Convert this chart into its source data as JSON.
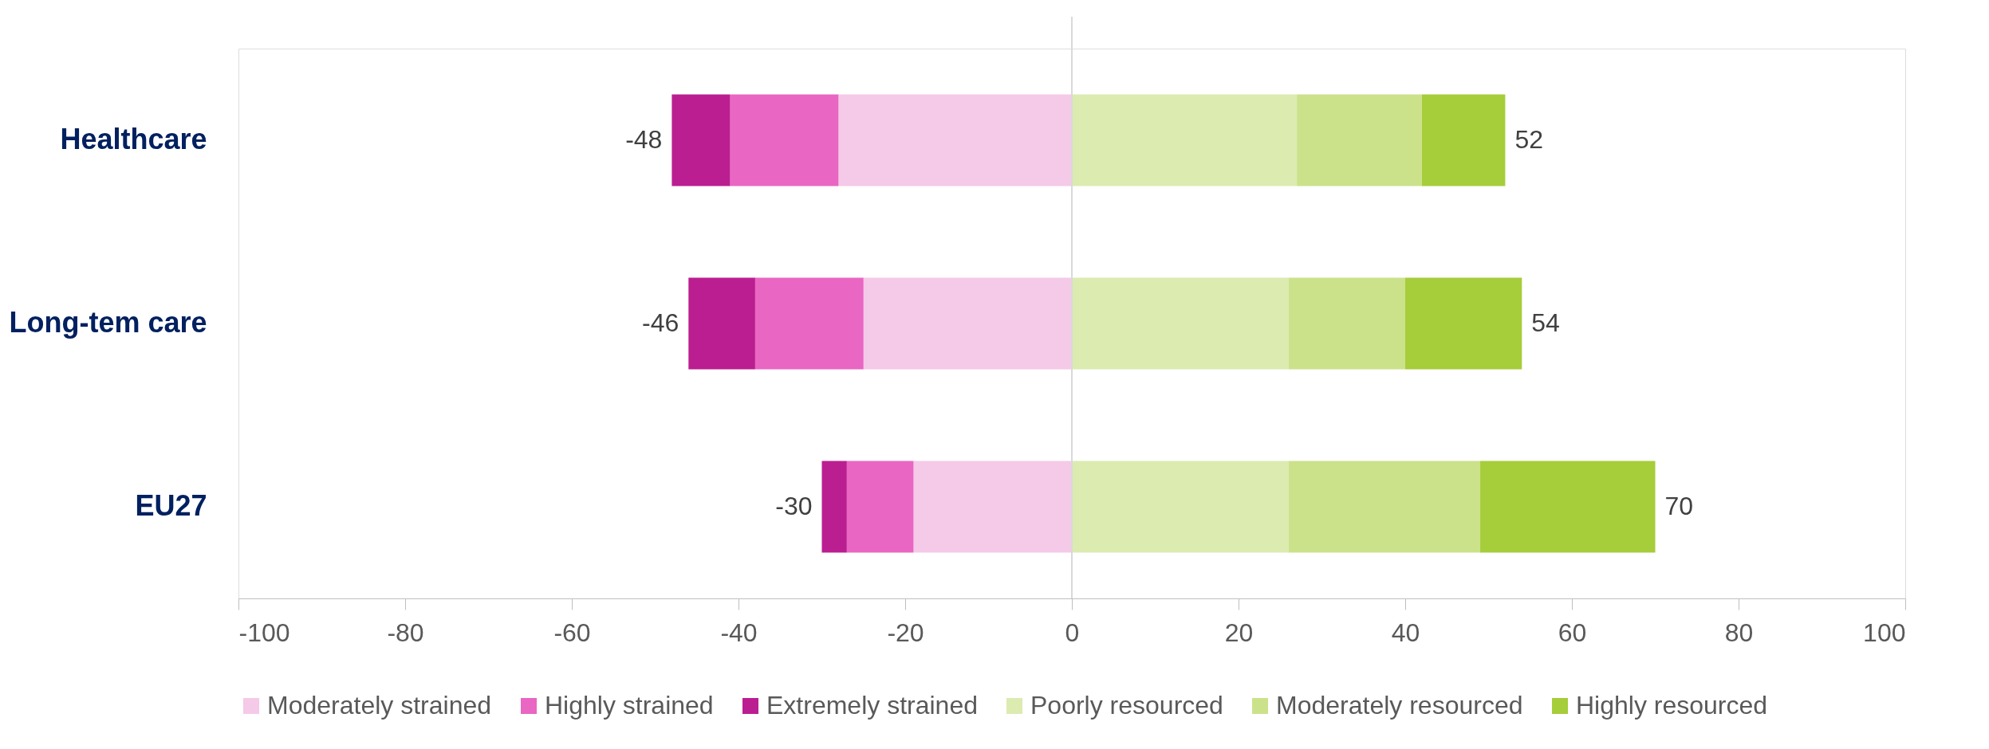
{
  "chart_data": {
    "type": "bar",
    "orientation": "horizontal",
    "stacked": true,
    "categories": [
      "Healthcare",
      "Long-tem care",
      "EU27"
    ],
    "series": [
      {
        "name": "Moderately strained",
        "color": "#f5c9e8",
        "values": [
          -28,
          -25,
          -19
        ]
      },
      {
        "name": "Highly strained",
        "color": "#e966c3",
        "values": [
          -13,
          -13,
          -8
        ]
      },
      {
        "name": "Extremely strained",
        "color": "#bb1e90",
        "values": [
          -7,
          -8,
          -3
        ]
      },
      {
        "name": "Poorly resourced",
        "color": "#dcebb0",
        "values": [
          27,
          26,
          26
        ]
      },
      {
        "name": "Moderately resourced",
        "color": "#cbe28b",
        "values": [
          15,
          14,
          23
        ]
      },
      {
        "name": "Highly resourced",
        "color": "#a6cd3a",
        "values": [
          10,
          14,
          21
        ]
      }
    ],
    "xlim": [
      -100,
      100
    ],
    "xticks": [
      -100,
      -80,
      -60,
      -40,
      -20,
      0,
      20,
      40,
      60,
      80,
      100
    ],
    "ref_lines": [
      {
        "axis": "x",
        "value": 0,
        "color": "#d9d9d9"
      }
    ],
    "annotations": [
      {
        "text": "-48",
        "x": -48,
        "y": "Healthcare"
      },
      {
        "text": "52",
        "x": 52,
        "y": "Healthcare"
      },
      {
        "text": "-46",
        "x": -46,
        "y": "Long-tem care"
      },
      {
        "text": "54",
        "x": 54,
        "y": "Long-tem care"
      },
      {
        "text": "-30",
        "x": -30,
        "y": "EU27"
      },
      {
        "text": "70",
        "x": 70,
        "y": "EU27"
      }
    ],
    "grid": false,
    "legend": "bottom"
  }
}
